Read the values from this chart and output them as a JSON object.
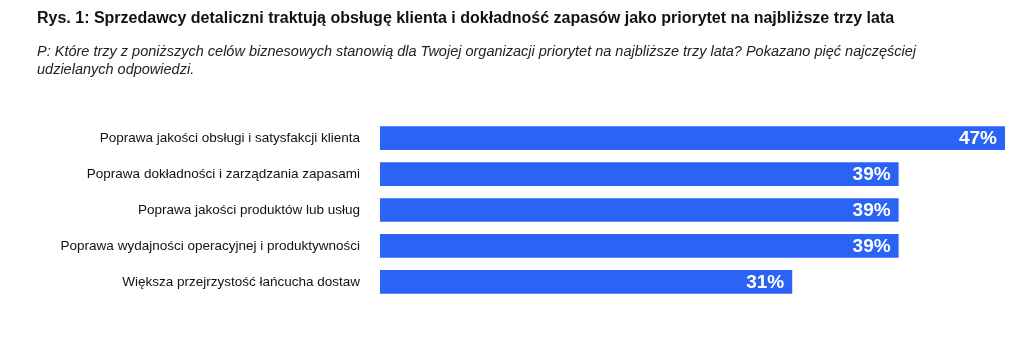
{
  "chart_data": {
    "type": "bar",
    "orientation": "horizontal",
    "title": "Rys. 1: Sprzedawcy detaliczni traktują obsługę klienta i dokładność zapasów jako priorytet na najbliższe trzy lata",
    "subtitle": "P: Które trzy z poniższych celów biznesowych stanowią dla Twojej organizacji priorytet na najbliższe trzy lata? Pokazano pięć najczęściej udzielanych odpowiedzi.",
    "categories": [
      "Poprawa jakości obsługi i satysfakcji klienta",
      "Poprawa dokładności i zarządzania zapasami",
      "Poprawa jakości produktów lub usług",
      "Poprawa wydajności operacyjnej i produktywności",
      "Większa przejrzystość łańcucha dostaw"
    ],
    "values": [
      47,
      39,
      39,
      39,
      31
    ],
    "value_labels": [
      "47%",
      "39%",
      "39%",
      "39%",
      "31%"
    ],
    "color": "#2b64f5",
    "tick_labels": "y",
    "grid": false,
    "legend": false
  }
}
